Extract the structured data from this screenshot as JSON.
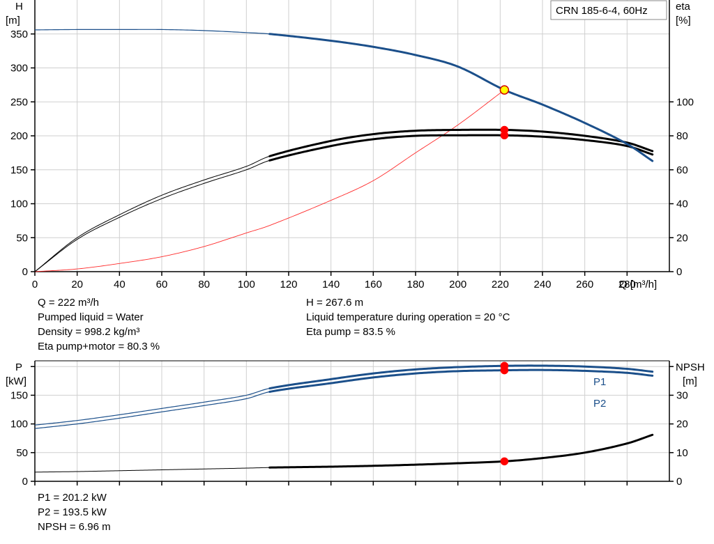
{
  "colors": {
    "head": "#1b4f8a",
    "power": "#1b4f8a",
    "eff": "#000000",
    "npsh": "#000000",
    "system": "#ff2a2a",
    "marker": "#ff0000",
    "duty_point": "#ffff00",
    "grid": "#cfcfcf"
  },
  "chart_data": [
    {
      "type": "line",
      "legend_box": "CRN 185-6-4, 60Hz",
      "xlabel": "Q [m³/h]",
      "ylabel_left": [
        "H",
        "[m]"
      ],
      "ylabel_right": [
        "eta",
        "[%]"
      ],
      "xlim": [
        0,
        300
      ],
      "ylim_left": [
        0,
        400
      ],
      "ylim_right": [
        0,
        160
      ],
      "xticks": [
        "0",
        "20",
        "40",
        "60",
        "80",
        "100",
        "120",
        "140",
        "160",
        "180",
        "200",
        "220",
        "240",
        "260",
        "280"
      ],
      "yticks_left": [
        "0",
        "50",
        "100",
        "150",
        "200",
        "250",
        "300",
        "350"
      ],
      "yticks_right": [
        "0",
        "20",
        "40",
        "60",
        "80",
        "100"
      ],
      "grid": true,
      "series": [
        {
          "key": "head",
          "axis": "left",
          "x": [
            0,
            20,
            40,
            60,
            80,
            100,
            111,
            140,
            160,
            180,
            200,
            222,
            240,
            260,
            280,
            292
          ],
          "y": [
            356,
            356.5,
            356.5,
            356.5,
            355,
            352,
            350,
            340,
            331,
            319,
            302,
            267.6,
            246,
            219,
            188,
            163
          ]
        },
        {
          "key": "eff_pump",
          "axis": "right",
          "x": [
            0,
            20,
            40,
            60,
            80,
            100,
            111,
            140,
            160,
            180,
            200,
            222,
            240,
            260,
            280,
            292
          ],
          "y": [
            0,
            20,
            33.5,
            45,
            54,
            62,
            68,
            77,
            81,
            83,
            83.5,
            83.5,
            82.5,
            80,
            76,
            71
          ]
        },
        {
          "key": "eff_total",
          "axis": "right",
          "x": [
            0,
            20,
            40,
            60,
            80,
            100,
            111,
            140,
            160,
            180,
            200,
            222,
            240,
            260,
            280,
            292
          ],
          "y": [
            0,
            19,
            32,
            43,
            52,
            60,
            65.5,
            74,
            78,
            80,
            80.3,
            80.3,
            79.5,
            77.5,
            74,
            69
          ]
        },
        {
          "key": "system",
          "axis": "left",
          "x": [
            0,
            20,
            40,
            60,
            80,
            100,
            111,
            140,
            160,
            180,
            200,
            222
          ],
          "y": [
            0,
            4,
            12,
            22,
            37,
            57,
            68,
            105,
            134,
            175,
            216,
            267.6
          ]
        }
      ],
      "duty_point": {
        "x": 222,
        "h": 267.6,
        "eta_pump": 83.5,
        "eta_total": 80.3
      }
    },
    {
      "type": "line",
      "xlabel": "",
      "ylabel_left": [
        "P",
        "[kW]"
      ],
      "ylabel_right": [
        "NPSH",
        "[m]"
      ],
      "xlim": [
        0,
        300
      ],
      "ylim_left": [
        0,
        210
      ],
      "ylim_right": [
        0,
        42
      ],
      "yticks_left": [
        "0",
        "50",
        "100",
        "150"
      ],
      "yticks_right": [
        "0",
        "10",
        "20",
        "30"
      ],
      "grid": true,
      "series": [
        {
          "key": "p1",
          "name": "P1",
          "axis": "left",
          "x": [
            0,
            20,
            40,
            60,
            80,
            100,
            111,
            140,
            160,
            180,
            200,
            222,
            240,
            260,
            280,
            292
          ],
          "y": [
            98,
            106,
            116,
            127,
            138,
            150,
            162,
            178,
            188,
            195,
            199,
            201.2,
            201.5,
            200,
            196,
            191
          ]
        },
        {
          "key": "p2",
          "name": "P2",
          "axis": "left",
          "x": [
            0,
            20,
            40,
            60,
            80,
            100,
            111,
            140,
            160,
            180,
            200,
            222,
            240,
            260,
            280,
            292
          ],
          "y": [
            92,
            100,
            110,
            121,
            132,
            144,
            156,
            171,
            181,
            188,
            192,
            193.5,
            194,
            192.5,
            189,
            184
          ]
        },
        {
          "key": "npsh",
          "axis": "right",
          "x": [
            0,
            20,
            40,
            60,
            80,
            100,
            111,
            140,
            160,
            180,
            200,
            222,
            240,
            260,
            280,
            292
          ],
          "y": [
            3.2,
            3.4,
            3.7,
            4,
            4.3,
            4.6,
            4.8,
            5.1,
            5.4,
            5.8,
            6.3,
            6.96,
            8.1,
            10,
            13.2,
            16.2
          ]
        }
      ],
      "duty_point": {
        "x": 222,
        "p1": 201.2,
        "p2": 193.5,
        "npsh": 6.96
      }
    }
  ],
  "info_top_left": [
    "Q = 222 m³/h",
    "Pumped liquid = Water",
    "Density = 998.2 kg/m³",
    "Eta pump+motor = 80.3 %"
  ],
  "info_top_right": [
    "H = 267.6 m",
    "Liquid temperature during operation = 20 °C",
    "Eta pump = 83.5 %"
  ],
  "info_bottom": [
    "P1 = 201.2 kW",
    "P2 = 193.5 kW",
    "NPSH = 6.96 m"
  ]
}
